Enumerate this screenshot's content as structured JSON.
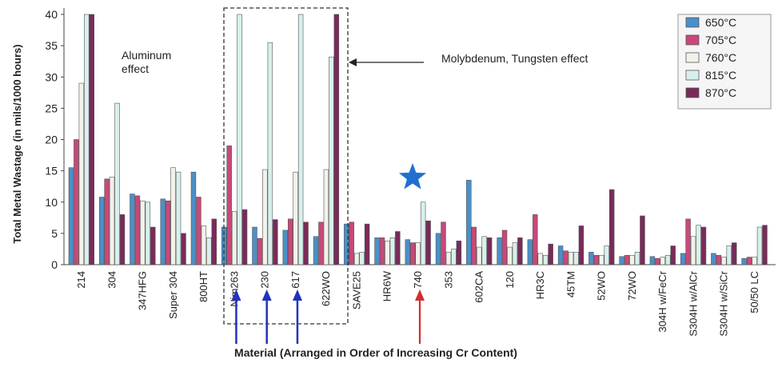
{
  "chart_data": {
    "type": "bar",
    "ylabel": "Total Metal Wastage (in mils/1000 hours)",
    "xlabel": "Material (Arranged in Order of Increasing Cr Content)",
    "ylim": [
      0,
      40
    ],
    "yticks": [
      "0",
      "5",
      "10",
      "15",
      "20",
      "25",
      "30",
      "35",
      "40"
    ],
    "grid": false,
    "legend_position": "top-right",
    "categories": [
      "214",
      "304",
      "347HFG",
      "Super 304",
      "800HT",
      "Nim263",
      "230",
      "617",
      "622WO",
      "SAVE25",
      "HR6W",
      "740",
      "353",
      "602CA",
      "120",
      "HR3C",
      "45TM",
      "52WO",
      "72WO",
      "304H w/FeCr",
      "S304H w/AlCr",
      "S304H w/SiCr",
      "50/50 LC"
    ],
    "series": [
      {
        "name": "650°C",
        "color": "#4a90c8",
        "values": [
          15.5,
          10.8,
          11.3,
          10.5,
          14.8,
          6,
          6,
          5.5,
          4.5,
          6.5,
          4.3,
          4,
          5,
          13.5,
          4.3,
          4,
          3,
          2,
          1.3,
          1.3,
          1.8,
          1.8,
          1
        ]
      },
      {
        "name": "705°C",
        "color": "#c8487a",
        "values": [
          20,
          13.7,
          11,
          10.2,
          10.8,
          19,
          4.2,
          7.3,
          6.8,
          6.8,
          4.3,
          3.5,
          6.8,
          6,
          5.5,
          8,
          2.2,
          1.5,
          1.5,
          1,
          7.3,
          1.5,
          1.2
        ]
      },
      {
        "name": "760°C",
        "color": "#f2f2ea",
        "values": [
          29,
          14,
          10.2,
          15.5,
          6.2,
          8.5,
          15.2,
          14.8,
          15.2,
          1.8,
          3.8,
          3.5,
          2,
          2.8,
          2.8,
          1.8,
          2,
          1.5,
          1.5,
          1.2,
          4.5,
          1.2,
          1.2
        ]
      },
      {
        "name": "815°C",
        "color": "#d8f0ec",
        "values": [
          40,
          25.8,
          10,
          14.8,
          4.3,
          40,
          35.5,
          40,
          33.2,
          2,
          4.3,
          10,
          2.5,
          4.5,
          3.5,
          1.5,
          2,
          3,
          2,
          1.5,
          6.3,
          3,
          6
        ]
      },
      {
        "name": "870°C",
        "color": "#7a2a5a",
        "values": [
          40,
          8,
          6,
          5,
          7.3,
          8.8,
          7.2,
          6.8,
          40,
          6.5,
          5.3,
          7,
          3.8,
          4.3,
          4.3,
          3.3,
          6.2,
          12,
          7.8,
          3,
          6,
          3.5,
          6.3
        ]
      }
    ],
    "annotations": [
      "Aluminum effect",
      "Molybdenum, Tungsten effect"
    ],
    "annotation_lines": [
      [
        "Aluminum",
        "effect"
      ],
      [
        "Molybdenum, Tungsten effect"
      ]
    ]
  },
  "legend": {
    "box_fill": "#f5f5f5"
  },
  "marks": {
    "star_color": "#1f6fd0",
    "blue_arrow_color": "#2233bb",
    "red_arrow_color": "#d03030"
  }
}
